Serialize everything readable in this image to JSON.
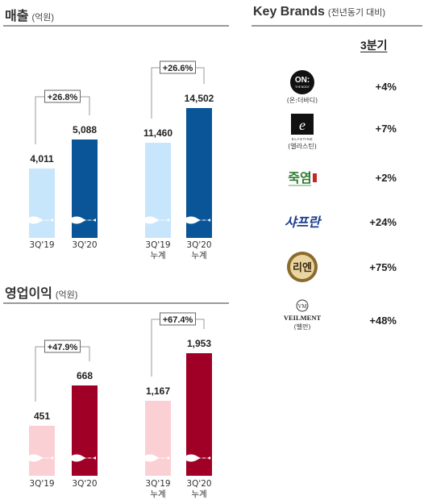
{
  "revenue": {
    "title": "매출",
    "unit": "(억원)"
  },
  "op_income": {
    "title": "영업이익",
    "unit": "(억원)"
  },
  "brands": {
    "title": "Key Brands",
    "subtitle": "(전년동기 대비)",
    "column_header": "3분기",
    "items": [
      {
        "logo_text": "ON:",
        "logo_sub": "THE BODY",
        "caption": "(온:더바디)",
        "change": "+4%"
      },
      {
        "logo_text": "ELASTINE",
        "caption": "(엘라스틴)",
        "change": "+7%"
      },
      {
        "logo_text": "죽염",
        "change": "+2%"
      },
      {
        "logo_text": "샤프란",
        "change": "+24%"
      },
      {
        "logo_text": "리엔",
        "change": "+75%"
      },
      {
        "logo_text": "VEILMENT",
        "logo_sub": "VM",
        "caption": "(벨먼)",
        "change": "+48%"
      }
    ]
  },
  "colors": {
    "revenue_light": "#c8e6fb",
    "revenue_dark": "#0a5597",
    "income_light": "#fbd0d5",
    "income_dark": "#a00026"
  },
  "chart_data": [
    {
      "type": "bar",
      "group": "revenue",
      "categories": [
        "3Q'19",
        "3Q'20",
        "3Q'19 누계",
        "3Q'20 누계"
      ],
      "values": [
        4011,
        5088,
        11460,
        14502
      ],
      "value_labels": [
        "4,011",
        "5,088",
        "11,460",
        "14,502"
      ],
      "tick_labels": [
        [
          "3Q'19"
        ],
        [
          "3Q'20"
        ],
        [
          "3Q'19",
          "누계"
        ],
        [
          "3Q'20",
          "누계"
        ]
      ],
      "growth": [
        "+26.8%",
        "+26.6%"
      ],
      "axis_break": true
    },
    {
      "type": "bar",
      "group": "op_income",
      "categories": [
        "3Q'19",
        "3Q'20",
        "3Q'19 누계",
        "3Q'20 누계"
      ],
      "values": [
        451,
        668,
        1167,
        1953
      ],
      "value_labels": [
        "451",
        "668",
        "1,167",
        "1,953"
      ],
      "tick_labels": [
        [
          "3Q'19"
        ],
        [
          "3Q'20"
        ],
        [
          "3Q'19",
          "누계"
        ],
        [
          "3Q'20",
          "누계"
        ]
      ],
      "growth": [
        "+47.9%",
        "+67.4%"
      ],
      "axis_break": true
    }
  ]
}
